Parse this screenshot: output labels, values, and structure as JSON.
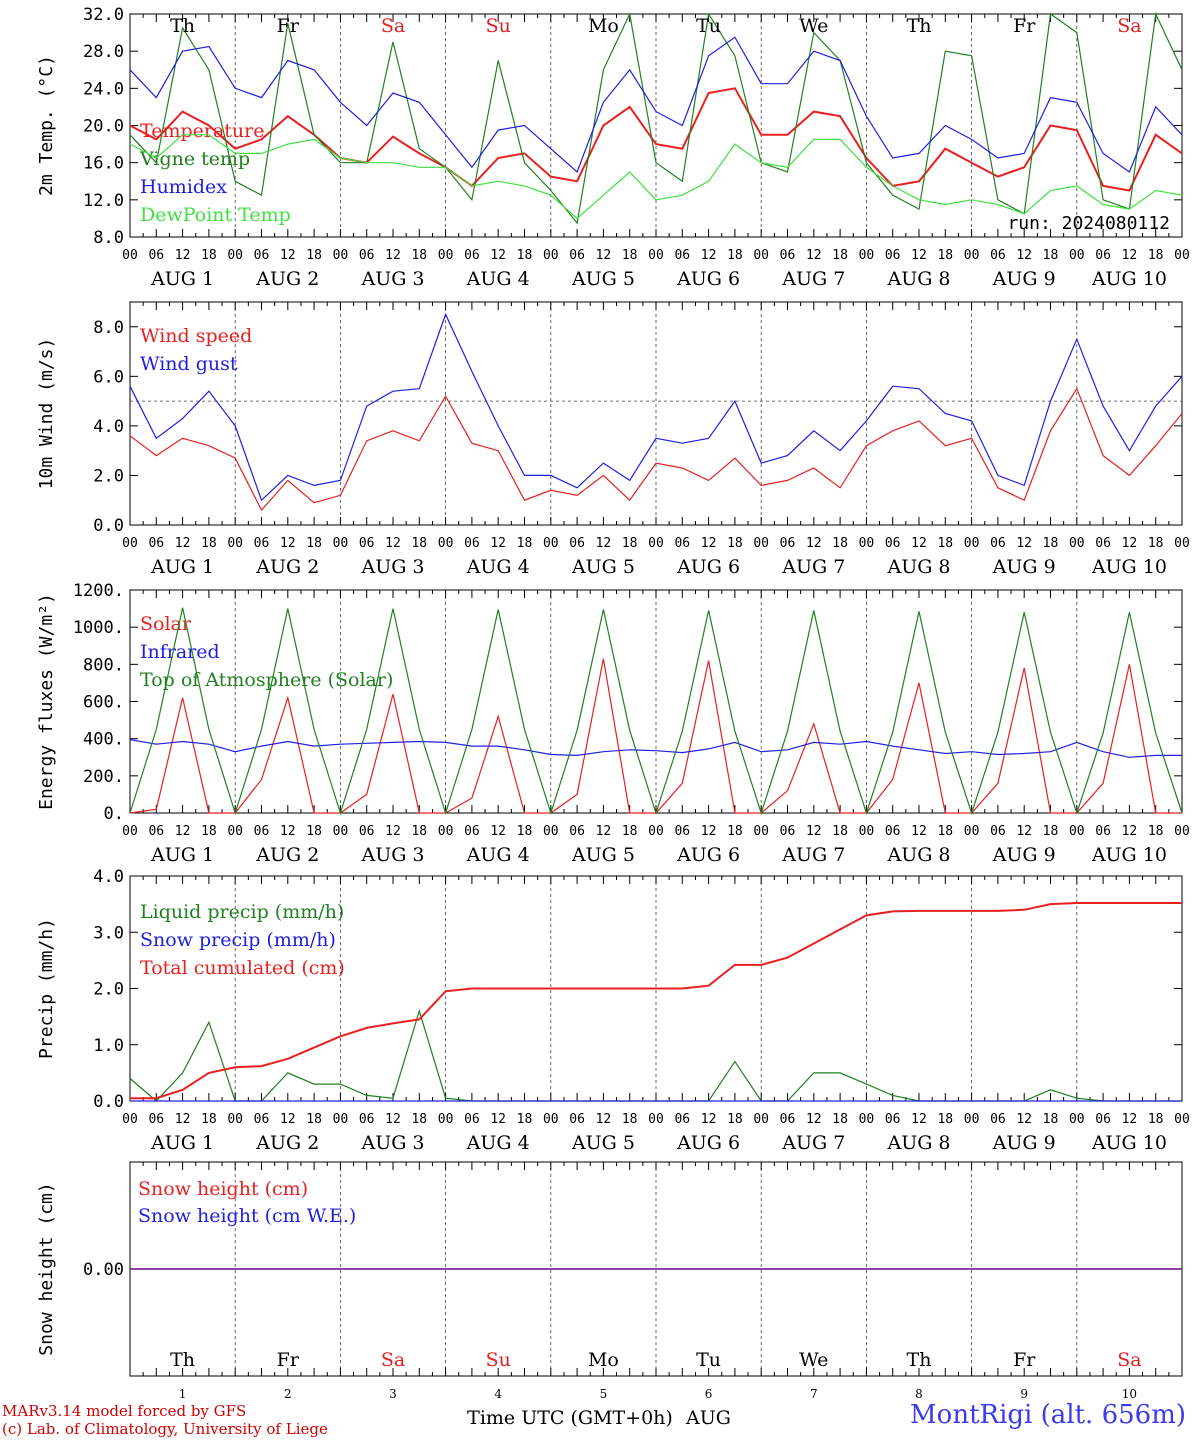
{
  "run_label": "run: 2024080112",
  "day_abbrevs": [
    "Th",
    "Fr",
    "Sa",
    "Su",
    "Mo",
    "Tu",
    "We",
    "Th",
    "Fr",
    "Sa"
  ],
  "day_abbrev_colors": [
    "#000000",
    "#000000",
    "#e02020",
    "#e02020",
    "#000000",
    "#000000",
    "#000000",
    "#000000",
    "#000000",
    "#e02020"
  ],
  "date_labels": [
    "AUG  1",
    "AUG  2",
    "AUG  3",
    "AUG  4",
    "AUG  5",
    "AUG  6",
    "AUG  7",
    "AUG  8",
    "AUG  9",
    "AUG 10"
  ],
  "day_numbers": [
    "1",
    "2",
    "3",
    "4",
    "5",
    "6",
    "7",
    "8",
    "9",
    "10"
  ],
  "hour_ticks": [
    "00",
    "06",
    "12",
    "18"
  ],
  "hour_ticks_end": "00",
  "x_axis_title": "Time UTC (GMT+0h)",
  "x_axis_month": "AUG",
  "footer": {
    "model": "MARv3.14 model forced by GFS",
    "credit": "(c) Lab. of Climatology, University of Liege",
    "station": "MontRigi (alt. 656m)"
  },
  "colors": {
    "temperature": "#e82020",
    "vigne": "#208020",
    "humidex": "#2020e0",
    "dewpoint": "#40e040",
    "solar": "#e82020",
    "infrared": "#2020e0",
    "toa": "#208020",
    "liquid": "#208020",
    "snow_precip": "#2020e0",
    "cumulated": "#e82020",
    "snow_cm": "#e82020",
    "snow_we": "#2020e0"
  },
  "chart_data": [
    {
      "type": "line",
      "ylabel": "2m Temp. (°C)",
      "ylim": [
        8,
        32
      ],
      "yticks": [
        "8.0",
        "12.0",
        "16.0",
        "20.0",
        "24.0",
        "28.0",
        "32.0"
      ],
      "x_hours": [
        0,
        6,
        12,
        18,
        24,
        30,
        36,
        42,
        48,
        54,
        60,
        66,
        72,
        78,
        84,
        90,
        96,
        102,
        108,
        114,
        120,
        126,
        132,
        138,
        144,
        150,
        156,
        162,
        168,
        174,
        180,
        186,
        192,
        198,
        204,
        210,
        216,
        222,
        228,
        234,
        240
      ],
      "series": [
        {
          "name": "Temperature",
          "color_key": "temperature",
          "values": [
            20.0,
            18.5,
            21.5,
            20.0,
            17.5,
            18.5,
            21.0,
            19.0,
            16.5,
            16.0,
            18.8,
            17.0,
            15.5,
            13.5,
            16.5,
            17.0,
            14.5,
            14.0,
            20.0,
            22.0,
            18.0,
            17.5,
            23.5,
            24.0,
            19.0,
            19.0,
            21.5,
            21.0,
            16.5,
            13.5,
            14.0,
            17.5,
            16.0,
            14.5,
            15.5,
            20.0,
            19.5,
            13.5,
            13.0,
            19.0,
            17.0
          ]
        },
        {
          "name": "Vigne temp",
          "color_key": "vigne",
          "values": [
            19.0,
            16.0,
            30.5,
            26.0,
            14.0,
            12.5,
            31.0,
            19.0,
            16.0,
            16.0,
            29.0,
            17.5,
            15.5,
            12.0,
            27.0,
            16.0,
            13.0,
            9.5,
            26.0,
            32.0,
            16.0,
            14.0,
            32.0,
            27.5,
            16.0,
            15.0,
            30.0,
            27.0,
            16.0,
            12.5,
            11.0,
            28.0,
            27.5,
            12.0,
            10.5,
            32.0,
            30.0,
            12.0,
            11.0,
            32.0,
            26.0
          ]
        },
        {
          "name": "Humidex",
          "color_key": "humidex",
          "values": [
            26.0,
            23.0,
            28.0,
            28.5,
            24.0,
            23.0,
            27.0,
            26.0,
            22.5,
            20.0,
            23.5,
            22.5,
            19.0,
            15.5,
            19.5,
            20.0,
            17.5,
            15.0,
            22.5,
            26.0,
            21.5,
            20.0,
            27.5,
            29.5,
            24.5,
            24.5,
            28.0,
            27.0,
            21.0,
            16.5,
            17.0,
            20.0,
            18.5,
            16.5,
            17.0,
            23.0,
            22.5,
            17.0,
            15.0,
            22.0,
            19.0
          ]
        },
        {
          "name": "DewPoint Temp",
          "color_key": "dewpoint",
          "values": [
            18.0,
            16.5,
            19.0,
            19.0,
            17.0,
            17.0,
            18.0,
            18.5,
            16.5,
            16.0,
            16.0,
            15.5,
            15.5,
            13.5,
            14.0,
            13.5,
            12.5,
            10.0,
            12.5,
            15.0,
            12.0,
            12.5,
            14.0,
            18.0,
            16.0,
            15.5,
            18.5,
            18.5,
            15.5,
            13.5,
            12.0,
            11.5,
            12.0,
            11.5,
            10.5,
            13.0,
            13.5,
            11.5,
            11.0,
            13.0,
            12.5
          ]
        }
      ]
    },
    {
      "type": "line",
      "ylabel": "10m Wind (m/s)",
      "ylim": [
        0,
        9
      ],
      "yticks": [
        "0.0",
        "2.0",
        "4.0",
        "6.0",
        "8.0"
      ],
      "ref_line": 5.0,
      "x_hours": [
        0,
        6,
        12,
        18,
        24,
        30,
        36,
        42,
        48,
        54,
        60,
        66,
        72,
        78,
        84,
        90,
        96,
        102,
        108,
        114,
        120,
        126,
        132,
        138,
        144,
        150,
        156,
        162,
        168,
        174,
        180,
        186,
        192,
        198,
        204,
        210,
        216,
        222,
        228,
        234,
        240
      ],
      "series": [
        {
          "name": "Wind speed",
          "color_key": "temperature",
          "values": [
            3.6,
            2.8,
            3.5,
            3.2,
            2.7,
            0.6,
            1.8,
            0.9,
            1.2,
            3.4,
            3.8,
            3.4,
            5.2,
            3.3,
            3.0,
            1.0,
            1.4,
            1.2,
            2.0,
            1.0,
            2.5,
            2.3,
            1.8,
            2.7,
            1.6,
            1.8,
            2.3,
            1.5,
            3.2,
            3.8,
            4.2,
            3.2,
            3.5,
            1.5,
            1.0,
            3.8,
            5.5,
            2.8,
            2.0,
            3.2,
            4.5
          ]
        },
        {
          "name": "Wind gust",
          "color_key": "humidex",
          "values": [
            5.6,
            3.5,
            4.3,
            5.4,
            4.0,
            1.0,
            2.0,
            1.6,
            1.8,
            4.8,
            5.4,
            5.5,
            8.5,
            6.2,
            4.0,
            2.0,
            2.0,
            1.5,
            2.5,
            1.8,
            3.5,
            3.3,
            3.5,
            5.0,
            2.5,
            2.8,
            3.8,
            3.0,
            4.2,
            5.6,
            5.5,
            4.5,
            4.2,
            2.0,
            1.6,
            5.0,
            7.5,
            4.8,
            3.0,
            4.8,
            6.0
          ]
        }
      ]
    },
    {
      "type": "line",
      "ylabel": "Energy fluxes (W/m²)",
      "ylim": [
        0,
        1200
      ],
      "yticks": [
        "0.",
        "200.",
        "400.",
        "600.",
        "800.",
        "1000.",
        "1200."
      ],
      "x_hours": [
        0,
        6,
        12,
        18,
        24,
        30,
        36,
        42,
        48,
        54,
        60,
        66,
        72,
        78,
        84,
        90,
        96,
        102,
        108,
        114,
        120,
        126,
        132,
        138,
        144,
        150,
        156,
        162,
        168,
        174,
        180,
        186,
        192,
        198,
        204,
        210,
        216,
        222,
        228,
        234,
        240
      ],
      "series": [
        {
          "name": "Solar",
          "color_key": "solar",
          "values": [
            0,
            20,
            620,
            0,
            0,
            180,
            620,
            0,
            0,
            100,
            640,
            0,
            0,
            80,
            520,
            0,
            0,
            100,
            830,
            0,
            0,
            160,
            820,
            0,
            0,
            120,
            480,
            0,
            0,
            180,
            700,
            0,
            0,
            160,
            780,
            0,
            0,
            160,
            800,
            0,
            0
          ],
          "note": ""
        },
        {
          "name": "Infrared",
          "color_key": "infrared",
          "values": [
            395,
            370,
            385,
            370,
            330,
            360,
            385,
            360,
            370,
            375,
            380,
            385,
            380,
            360,
            360,
            340,
            315,
            310,
            330,
            340,
            335,
            325,
            345,
            380,
            330,
            340,
            380,
            370,
            385,
            360,
            340,
            320,
            330,
            315,
            320,
            330,
            380,
            330,
            300,
            310,
            310
          ]
        },
        {
          "name": "Top of Atmosphere (Solar)",
          "color_key": "toa",
          "values": [
            0,
            450,
            1105,
            450,
            0,
            450,
            1100,
            450,
            0,
            450,
            1100,
            450,
            0,
            450,
            1095,
            450,
            0,
            445,
            1095,
            445,
            0,
            440,
            1090,
            440,
            0,
            440,
            1090,
            440,
            0,
            435,
            1085,
            435,
            0,
            435,
            1080,
            435,
            0,
            430,
            1080,
            430,
            0
          ]
        }
      ]
    },
    {
      "type": "line",
      "ylabel": "Precip (mm/h)",
      "ylim": [
        0,
        4
      ],
      "yticks": [
        "0.0",
        "1.0",
        "2.0",
        "3.0",
        "4.0"
      ],
      "x_hours": [
        0,
        6,
        12,
        18,
        24,
        30,
        36,
        42,
        48,
        54,
        60,
        66,
        72,
        78,
        84,
        90,
        96,
        102,
        108,
        114,
        120,
        126,
        132,
        138,
        144,
        150,
        156,
        162,
        168,
        174,
        180,
        186,
        192,
        198,
        204,
        210,
        216,
        222,
        228,
        234,
        240
      ],
      "series": [
        {
          "name": "Liquid precip (mm/h)",
          "color_key": "liquid",
          "values": [
            0.4,
            0.0,
            0.5,
            1.4,
            0.0,
            0.0,
            0.5,
            0.3,
            0.3,
            0.1,
            0.05,
            1.6,
            0.05,
            0.0,
            0.0,
            0.0,
            0.0,
            0.0,
            0.0,
            0.0,
            0.0,
            0.0,
            0.0,
            0.7,
            0.0,
            0.0,
            0.5,
            0.5,
            0.3,
            0.1,
            0.0,
            0.0,
            0.0,
            0.0,
            0.0,
            0.2,
            0.05,
            0.0,
            0.0,
            0.0,
            0.0
          ]
        },
        {
          "name": "Snow precip (mm/h)",
          "color_key": "snow_precip",
          "values": [
            0,
            0,
            0,
            0,
            0,
            0,
            0,
            0,
            0,
            0,
            0,
            0,
            0,
            0,
            0,
            0,
            0,
            0,
            0,
            0,
            0,
            0,
            0,
            0,
            0,
            0,
            0,
            0,
            0,
            0,
            0,
            0,
            0,
            0,
            0,
            0,
            0,
            0,
            0,
            0,
            0
          ]
        },
        {
          "name": "Total cumulated (cm)",
          "color_key": "cumulated",
          "values": [
            0.05,
            0.05,
            0.2,
            0.5,
            0.6,
            0.62,
            0.75,
            0.95,
            1.15,
            1.3,
            1.38,
            1.45,
            1.95,
            2.0,
            2.0,
            2.0,
            2.0,
            2.0,
            2.0,
            2.0,
            2.0,
            2.0,
            2.05,
            2.42,
            2.42,
            2.55,
            2.8,
            3.05,
            3.3,
            3.37,
            3.38,
            3.38,
            3.38,
            3.38,
            3.4,
            3.5,
            3.52,
            3.52,
            3.52,
            3.52,
            3.52
          ]
        }
      ]
    },
    {
      "type": "line",
      "ylabel": "Snow height (cm)",
      "ylim": [
        -1,
        1
      ],
      "yticks": [
        "0.00"
      ],
      "x_hours": [
        0,
        240
      ],
      "series": [
        {
          "name": "Snow height (cm)",
          "color_key": "snow_cm",
          "values": [
            0,
            0
          ]
        },
        {
          "name": "Snow height (cm W.E.)",
          "color_key": "snow_we",
          "values": [
            0,
            0
          ]
        }
      ]
    }
  ]
}
